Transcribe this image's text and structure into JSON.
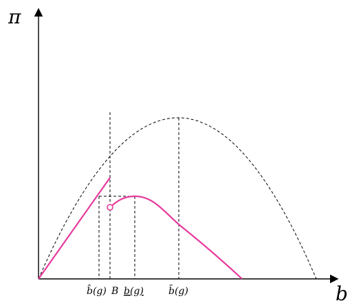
{
  "axes": {
    "y_symbol": "π",
    "x_symbol": "b"
  },
  "ticks": [
    {
      "id": "bhat",
      "label": "b̂(g)"
    },
    {
      "id": "B",
      "label": "B"
    },
    {
      "id": "bunder",
      "label": "b(g)"
    },
    {
      "id": "bbar",
      "label": "b̄(g)"
    }
  ],
  "colors": {
    "axes": "#000000",
    "reference_curves": "#000000",
    "highlight_curve": "#e6399b"
  }
}
